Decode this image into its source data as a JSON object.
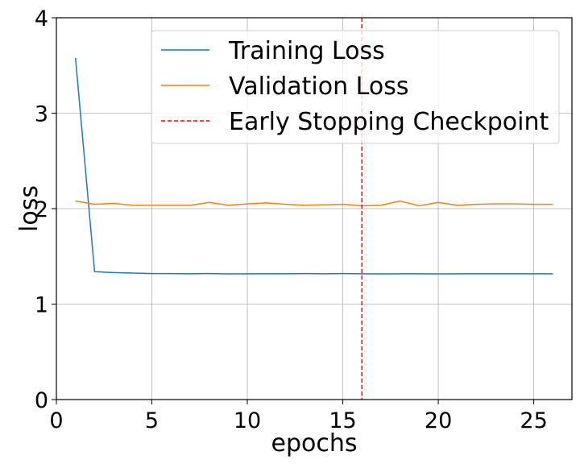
{
  "chart_data": {
    "type": "line",
    "xlabel": "epochs",
    "ylabel": "loss",
    "xlim": [
      0,
      27
    ],
    "ylim": [
      0,
      4
    ],
    "xticks": [
      0,
      5,
      10,
      15,
      20,
      25
    ],
    "yticks": [
      0,
      1,
      2,
      3,
      4
    ],
    "grid": true,
    "legend_position": "top-right",
    "x": [
      1,
      2,
      3,
      4,
      5,
      6,
      7,
      8,
      9,
      10,
      11,
      12,
      13,
      14,
      15,
      16,
      17,
      18,
      19,
      20,
      21,
      22,
      23,
      24,
      25,
      26
    ],
    "series": [
      {
        "name": "Training Loss",
        "color": "#1f77b4",
        "style": "solid",
        "values": [
          3.58,
          1.34,
          1.33,
          1.325,
          1.32,
          1.32,
          1.318,
          1.32,
          1.316,
          1.318,
          1.318,
          1.318,
          1.32,
          1.318,
          1.32,
          1.318,
          1.316,
          1.318,
          1.318,
          1.316,
          1.318,
          1.318,
          1.318,
          1.318,
          1.318,
          1.318
        ]
      },
      {
        "name": "Validation Loss",
        "color": "#ff7f0e",
        "style": "solid",
        "values": [
          2.08,
          2.045,
          2.055,
          2.035,
          2.035,
          2.035,
          2.035,
          2.065,
          2.035,
          2.05,
          2.06,
          2.045,
          2.035,
          2.04,
          2.045,
          2.03,
          2.035,
          2.08,
          2.03,
          2.065,
          2.035,
          2.045,
          2.05,
          2.05,
          2.045,
          2.045
        ]
      }
    ],
    "vlines": [
      {
        "name": "Early Stopping Checkpoint",
        "x": 16,
        "color": "#ff0000",
        "style": "dashed"
      }
    ]
  }
}
